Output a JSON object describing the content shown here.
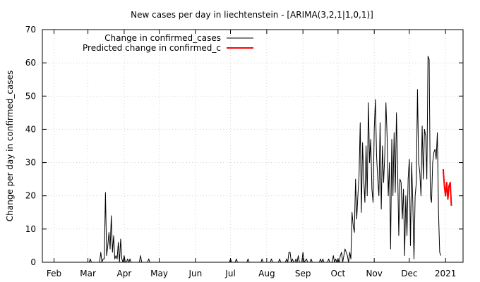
{
  "chart_data": {
    "type": "line",
    "title": "New cases per day in liechtenstein -  [ARIMA(3,2,1|1,0,1)]",
    "xlabel": "",
    "ylabel": "Change per day in confirmed_cases",
    "ylim": [
      0,
      70
    ],
    "yticks": [
      0,
      10,
      20,
      30,
      40,
      50,
      60,
      70
    ],
    "xlim": [
      "2020-01-22",
      "2021-01-16"
    ],
    "xticks": [
      {
        "label": "Feb",
        "date": "2020-02-01"
      },
      {
        "label": "Mar",
        "date": "2020-03-01"
      },
      {
        "label": "Apr",
        "date": "2020-04-01"
      },
      {
        "label": "May",
        "date": "2020-05-01"
      },
      {
        "label": "Jun",
        "date": "2020-06-01"
      },
      {
        "label": "Jul",
        "date": "2020-07-01"
      },
      {
        "label": "Aug",
        "date": "2020-08-01"
      },
      {
        "label": "Sep",
        "date": "2020-09-01"
      },
      {
        "label": "Oct",
        "date": "2020-10-01"
      },
      {
        "label": "Nov",
        "date": "2020-11-01"
      },
      {
        "label": "Dec",
        "date": "2020-12-01"
      },
      {
        "label": "2021",
        "date": "2021-01-01"
      }
    ],
    "grid": true,
    "legend_position": "top-left",
    "series": [
      {
        "name": "Change in confirmed_cases",
        "color": "#000000",
        "points": [
          [
            "2020-01-22",
            0
          ],
          [
            "2020-03-02",
            0
          ],
          [
            "2020-03-03",
            1
          ],
          [
            "2020-03-04",
            0
          ],
          [
            "2020-03-05",
            0
          ],
          [
            "2020-03-11",
            0
          ],
          [
            "2020-03-12",
            3
          ],
          [
            "2020-03-13",
            0
          ],
          [
            "2020-03-14",
            1
          ],
          [
            "2020-03-15",
            1
          ],
          [
            "2020-03-16",
            21
          ],
          [
            "2020-03-17",
            2
          ],
          [
            "2020-03-18",
            5
          ],
          [
            "2020-03-19",
            9
          ],
          [
            "2020-03-20",
            4
          ],
          [
            "2020-03-21",
            14
          ],
          [
            "2020-03-22",
            3
          ],
          [
            "2020-03-23",
            8
          ],
          [
            "2020-03-24",
            1
          ],
          [
            "2020-03-25",
            2
          ],
          [
            "2020-03-26",
            1
          ],
          [
            "2020-03-27",
            6
          ],
          [
            "2020-03-28",
            0
          ],
          [
            "2020-03-29",
            7
          ],
          [
            "2020-03-30",
            1
          ],
          [
            "2020-03-31",
            0
          ],
          [
            "2020-04-01",
            2
          ],
          [
            "2020-04-02",
            0
          ],
          [
            "2020-04-03",
            0
          ],
          [
            "2020-04-04",
            1
          ],
          [
            "2020-04-05",
            0
          ],
          [
            "2020-04-06",
            1
          ],
          [
            "2020-04-07",
            0
          ],
          [
            "2020-04-14",
            0
          ],
          [
            "2020-04-15",
            2
          ],
          [
            "2020-04-16",
            0
          ],
          [
            "2020-04-21",
            0
          ],
          [
            "2020-04-22",
            1
          ],
          [
            "2020-04-23",
            0
          ],
          [
            "2020-06-30",
            0
          ],
          [
            "2020-07-01",
            1
          ],
          [
            "2020-07-02",
            0
          ],
          [
            "2020-07-05",
            0
          ],
          [
            "2020-07-06",
            1
          ],
          [
            "2020-07-07",
            0
          ],
          [
            "2020-07-15",
            0
          ],
          [
            "2020-07-16",
            1
          ],
          [
            "2020-07-17",
            0
          ],
          [
            "2020-07-27",
            0
          ],
          [
            "2020-07-28",
            1
          ],
          [
            "2020-07-29",
            0
          ],
          [
            "2020-08-04",
            0
          ],
          [
            "2020-08-05",
            1
          ],
          [
            "2020-08-06",
            0
          ],
          [
            "2020-08-11",
            0
          ],
          [
            "2020-08-12",
            1
          ],
          [
            "2020-08-13",
            0
          ],
          [
            "2020-08-17",
            0
          ],
          [
            "2020-08-18",
            1
          ],
          [
            "2020-08-19",
            0
          ],
          [
            "2020-08-20",
            3
          ],
          [
            "2020-08-21",
            3
          ],
          [
            "2020-08-22",
            0
          ],
          [
            "2020-08-23",
            1
          ],
          [
            "2020-08-24",
            0
          ],
          [
            "2020-08-25",
            0
          ],
          [
            "2020-08-26",
            1
          ],
          [
            "2020-08-27",
            0
          ],
          [
            "2020-08-28",
            2
          ],
          [
            "2020-08-29",
            0
          ],
          [
            "2020-08-31",
            0
          ],
          [
            "2020-09-01",
            3
          ],
          [
            "2020-09-02",
            0
          ],
          [
            "2020-09-04",
            1
          ],
          [
            "2020-09-05",
            0
          ],
          [
            "2020-09-07",
            0
          ],
          [
            "2020-09-08",
            1
          ],
          [
            "2020-09-09",
            0
          ],
          [
            "2020-09-15",
            0
          ],
          [
            "2020-09-16",
            1
          ],
          [
            "2020-09-17",
            0
          ],
          [
            "2020-09-18",
            1
          ],
          [
            "2020-09-19",
            0
          ],
          [
            "2020-09-22",
            0
          ],
          [
            "2020-09-23",
            1
          ],
          [
            "2020-09-24",
            0
          ],
          [
            "2020-09-26",
            0
          ],
          [
            "2020-09-27",
            2
          ],
          [
            "2020-09-28",
            0
          ],
          [
            "2020-09-29",
            1
          ],
          [
            "2020-09-30",
            0
          ],
          [
            "2020-10-01",
            1
          ],
          [
            "2020-10-02",
            0
          ],
          [
            "2020-10-03",
            2
          ],
          [
            "2020-10-04",
            3
          ],
          [
            "2020-10-05",
            0
          ],
          [
            "2020-10-06",
            2
          ],
          [
            "2020-10-07",
            4
          ],
          [
            "2020-10-08",
            3
          ],
          [
            "2020-10-09",
            2
          ],
          [
            "2020-10-10",
            0
          ],
          [
            "2020-10-11",
            3
          ],
          [
            "2020-10-12",
            1
          ],
          [
            "2020-10-13",
            15
          ],
          [
            "2020-10-14",
            11
          ],
          [
            "2020-10-15",
            9
          ],
          [
            "2020-10-16",
            25
          ],
          [
            "2020-10-17",
            13
          ],
          [
            "2020-10-18",
            20
          ],
          [
            "2020-10-19",
            26
          ],
          [
            "2020-10-20",
            42
          ],
          [
            "2020-10-21",
            15
          ],
          [
            "2020-10-22",
            36
          ],
          [
            "2020-10-23",
            25
          ],
          [
            "2020-10-24",
            18
          ],
          [
            "2020-10-25",
            35
          ],
          [
            "2020-10-26",
            20
          ],
          [
            "2020-10-27",
            48
          ],
          [
            "2020-10-28",
            30
          ],
          [
            "2020-10-29",
            37
          ],
          [
            "2020-10-30",
            22
          ],
          [
            "2020-10-31",
            18
          ],
          [
            "2020-11-01",
            40
          ],
          [
            "2020-11-02",
            49
          ],
          [
            "2020-11-03",
            32
          ],
          [
            "2020-11-04",
            25
          ],
          [
            "2020-11-05",
            20
          ],
          [
            "2020-11-06",
            42
          ],
          [
            "2020-11-07",
            16
          ],
          [
            "2020-11-08",
            35
          ],
          [
            "2020-11-09",
            24
          ],
          [
            "2020-11-10",
            32
          ],
          [
            "2020-11-11",
            48
          ],
          [
            "2020-11-12",
            38
          ],
          [
            "2020-11-13",
            20
          ],
          [
            "2020-11-14",
            30
          ],
          [
            "2020-11-15",
            4
          ],
          [
            "2020-11-16",
            37
          ],
          [
            "2020-11-17",
            20
          ],
          [
            "2020-11-18",
            39
          ],
          [
            "2020-11-19",
            21
          ],
          [
            "2020-11-20",
            45
          ],
          [
            "2020-11-21",
            28
          ],
          [
            "2020-11-22",
            8
          ],
          [
            "2020-11-23",
            25
          ],
          [
            "2020-11-24",
            24
          ],
          [
            "2020-11-25",
            13
          ],
          [
            "2020-11-26",
            22
          ],
          [
            "2020-11-27",
            2
          ],
          [
            "2020-11-28",
            20
          ],
          [
            "2020-11-29",
            8
          ],
          [
            "2020-11-30",
            25
          ],
          [
            "2020-12-01",
            31
          ],
          [
            "2020-12-02",
            5
          ],
          [
            "2020-12-03",
            30
          ],
          [
            "2020-12-04",
            18
          ],
          [
            "2020-12-05",
            1
          ],
          [
            "2020-12-06",
            20
          ],
          [
            "2020-12-07",
            24
          ],
          [
            "2020-12-08",
            52
          ],
          [
            "2020-12-09",
            30
          ],
          [
            "2020-12-10",
            27
          ],
          [
            "2020-12-11",
            20
          ],
          [
            "2020-12-12",
            41
          ],
          [
            "2020-12-13",
            25
          ],
          [
            "2020-12-14",
            40
          ],
          [
            "2020-12-15",
            38
          ],
          [
            "2020-12-16",
            25
          ],
          [
            "2020-12-17",
            62
          ],
          [
            "2020-12-18",
            61
          ],
          [
            "2020-12-19",
            20
          ],
          [
            "2020-12-20",
            18
          ],
          [
            "2020-12-21",
            30
          ],
          [
            "2020-12-22",
            33
          ],
          [
            "2020-12-23",
            34
          ],
          [
            "2020-12-24",
            31
          ],
          [
            "2020-12-25",
            39
          ],
          [
            "2020-12-26",
            15
          ],
          [
            "2020-12-27",
            3
          ],
          [
            "2020-12-28",
            2
          ]
        ]
      },
      {
        "name": "Predicted change in confirmed_c",
        "color": "#ff0000",
        "points": [
          [
            "2020-12-30",
            28
          ],
          [
            "2020-12-31",
            23
          ],
          [
            "2021-01-01",
            20
          ],
          [
            "2021-01-02",
            24
          ],
          [
            "2021-01-03",
            19
          ],
          [
            "2021-01-04",
            23
          ],
          [
            "2021-01-05",
            24
          ],
          [
            "2021-01-06",
            17
          ]
        ]
      }
    ]
  }
}
